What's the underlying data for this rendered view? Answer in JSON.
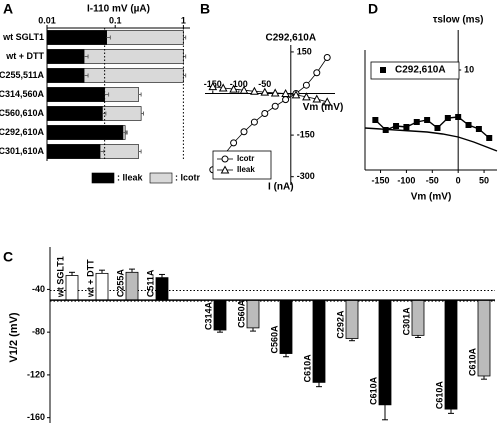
{
  "chart_data": [
    {
      "panel": "A",
      "type": "bar",
      "orientation": "horizontal",
      "title": "I-110 mV (µA)",
      "categories": [
        "wt SGLT1",
        "wt + DTT",
        "C255,511A",
        "C314,560A",
        "C560,610A",
        "C292,610A",
        "C301,610A"
      ],
      "series": [
        {
          "name": ": Ileak",
          "color": "#000000",
          "values": [
            0.075,
            0.035,
            0.035,
            0.07,
            0.065,
            0.13,
            0.06
          ],
          "errors": [
            0.01,
            0.005,
            0.005,
            0.01,
            0.008,
            0.015,
            0.008
          ]
        },
        {
          "name": ": Icotr",
          "color": "#d9d9d9",
          "values": [
            1.0,
            1.0,
            1.0,
            0.22,
            0.24,
            0.14,
            0.22
          ],
          "errors": [
            0.08,
            0.08,
            0.08,
            0.02,
            0.02,
            0.01,
            0.02
          ]
        }
      ],
      "log_x": true,
      "xlim": [
        0.01,
        1.25
      ],
      "xticks": [
        0.01,
        0.1,
        1
      ],
      "reference_lines": [
        0.07,
        1
      ],
      "legend": "bottom"
    },
    {
      "panel": "B",
      "type": "line",
      "title": "C292,610A",
      "xlabel": "Vm (mV)",
      "ylabel": "I (nA)",
      "x": [
        -150,
        -130,
        -110,
        -90,
        -70,
        -50,
        -30,
        -10,
        10,
        30,
        50,
        70
      ],
      "series": [
        {
          "name": "Icotr",
          "color": "#000000",
          "marker": "circle",
          "values": [
            -275,
            -225,
            -178,
            -138,
            -103,
            -72,
            -46,
            -22,
            0,
            30,
            75,
            130
          ]
        },
        {
          "name": "Ileak",
          "color": "#000000",
          "marker": "triangle",
          "values": [
            25,
            20,
            16,
            12,
            8,
            5,
            2,
            0,
            -5,
            -12,
            -20,
            -30
          ]
        }
      ],
      "xlim": [
        -165,
        85
      ],
      "ylim": [
        -330,
        175
      ],
      "xticks": [
        -150,
        -100,
        -50
      ],
      "yticks": [
        -300,
        -150,
        150
      ],
      "legend": "lower left"
    },
    {
      "panel": "C",
      "type": "bar",
      "orientation": "vertical",
      "ylabel": "V1/2 (mV)",
      "categories": [
        "wt SGLT1",
        "wt + DTT",
        "C255A",
        "C511A",
        "C314A",
        "C560A",
        "C560A",
        "C610A",
        "C292A",
        "C610A",
        "C301A",
        "C610A",
        "C610A"
      ],
      "values": [
        -27,
        -25,
        -24,
        -29,
        -78,
        -76,
        -100,
        -127,
        -86,
        -148,
        -83,
        -152,
        -121
      ],
      "errors": [
        3,
        3,
        3,
        3,
        2,
        3,
        3,
        4,
        2,
        14,
        2,
        4,
        3
      ],
      "colors": [
        "#ffffff",
        "#ffffff",
        "#bbbbbb",
        "#000000",
        "#000000",
        "#bbbbbb",
        "#000000",
        "#000000",
        "#bbbbbb",
        "#000000",
        "#bbbbbb",
        "#000000",
        "#bbbbbb"
      ],
      "bar_base": -50,
      "ylim": [
        -165,
        -5
      ],
      "yticks": [
        -160,
        -120,
        -80,
        -40
      ],
      "reference_lines": [
        -41,
        -51
      ]
    },
    {
      "panel": "D",
      "type": "scatter",
      "ylabel": "τslow (ms)",
      "xlabel": "Vm (mV)",
      "series": [
        {
          "name": "C292,610A",
          "color": "#000000",
          "marker": "square",
          "x": [
            -160,
            -140,
            -120,
            -100,
            -80,
            -60,
            -40,
            -20,
            0,
            20,
            40,
            60
          ],
          "values": [
            5,
            4,
            4.4,
            4.3,
            4.8,
            5,
            4.2,
            5.2,
            5.3,
            4.5,
            4.1,
            3.2
          ]
        },
        {
          "color": "#000000",
          "marker": "none",
          "x": [
            -180,
            -150,
            -120,
            -90,
            -60,
            -30,
            0,
            30,
            60,
            75
          ],
          "values": [
            4.2,
            4.1,
            4.0,
            3.9,
            3.8,
            3.6,
            3.3,
            2.8,
            2.2,
            1.9
          ]
        }
      ],
      "xlim": [
        -180,
        75
      ],
      "ylim": [
        0,
        14
      ],
      "xticks": [
        -150,
        -100,
        -50,
        0,
        50
      ],
      "yticks": [
        10
      ],
      "legend": "upper left"
    }
  ]
}
